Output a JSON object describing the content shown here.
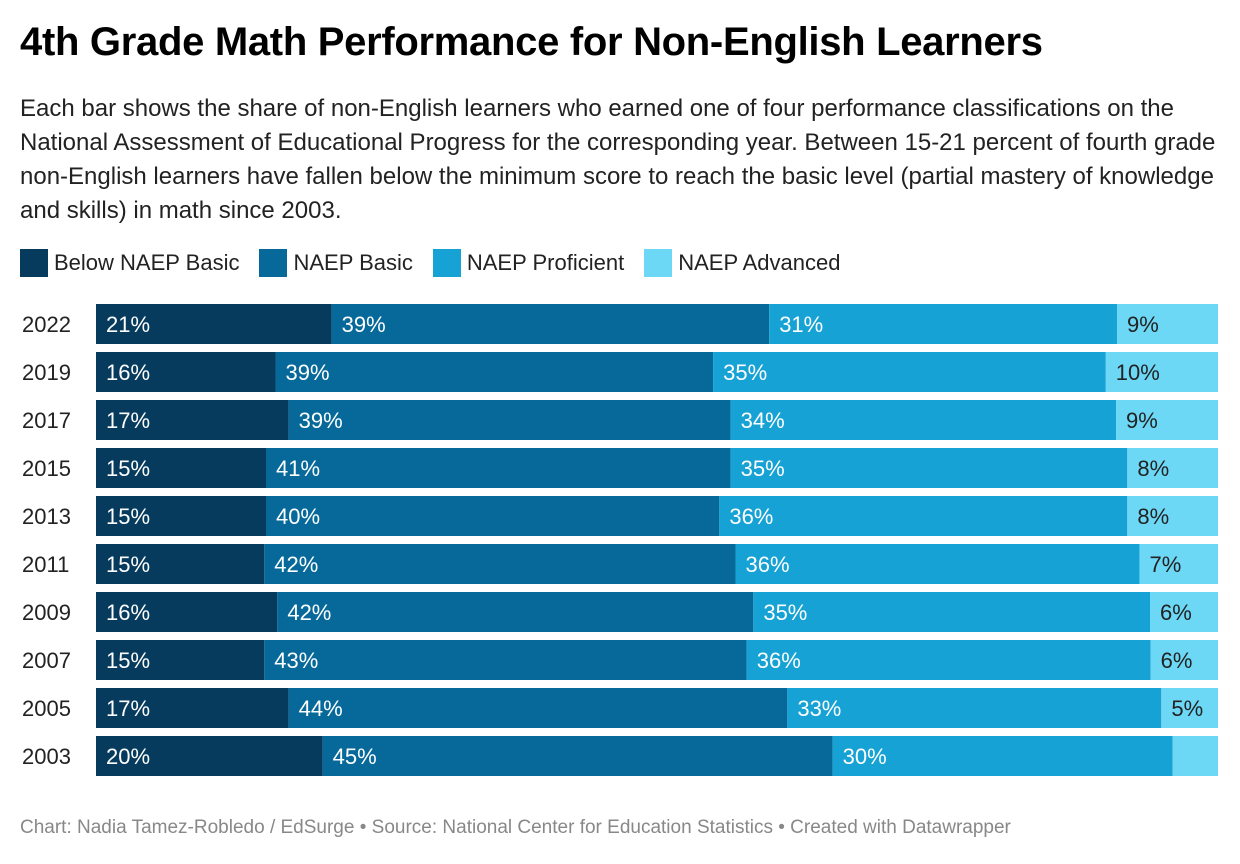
{
  "title": "4th Grade Math Performance for Non-English Learners",
  "subtitle": "Each bar shows the share of non-English learners who earned one of four performance classifications on the National Assessment of Educational Progress for the corresponding year. Between 15-21 percent of fourth grade non-English learners have fallen below the minimum score to reach the basic level (partial mastery of knowledge and skills) in math since 2003.",
  "footer": "Chart: Nadia Tamez-Robledo / EdSurge • Source: National Center for Education Statistics • Created with Datawrapper",
  "legend": [
    {
      "label": "Below NAEP Basic",
      "color": "#063b5e"
    },
    {
      "label": "NAEP Basic",
      "color": "#06699a"
    },
    {
      "label": "NAEP Proficient",
      "color": "#16a2d4"
    },
    {
      "label": "NAEP Advanced",
      "color": "#6cd8f6"
    }
  ],
  "chart_data": {
    "type": "bar",
    "orientation": "horizontal",
    "stacked": true,
    "categories": [
      "2022",
      "2019",
      "2017",
      "2015",
      "2013",
      "2011",
      "2009",
      "2007",
      "2005",
      "2003"
    ],
    "series": [
      {
        "name": "Below NAEP Basic",
        "color": "#063b5e",
        "values": [
          21,
          16,
          17,
          15,
          15,
          15,
          16,
          15,
          17,
          20
        ]
      },
      {
        "name": "NAEP Basic",
        "color": "#06699a",
        "values": [
          39,
          39,
          39,
          41,
          40,
          42,
          42,
          43,
          44,
          45
        ]
      },
      {
        "name": "NAEP Proficient",
        "color": "#16a2d4",
        "values": [
          31,
          35,
          34,
          35,
          36,
          36,
          35,
          36,
          33,
          30
        ]
      },
      {
        "name": "NAEP Advanced",
        "color": "#6cd8f6",
        "values": [
          9,
          10,
          9,
          8,
          8,
          7,
          6,
          6,
          5,
          4
        ]
      }
    ],
    "data_labels": [
      [
        "21%",
        "16%",
        "17%",
        "15%",
        "15%",
        "15%",
        "16%",
        "15%",
        "17%",
        "20%"
      ],
      [
        "39%",
        "39%",
        "39%",
        "41%",
        "40%",
        "42%",
        "42%",
        "43%",
        "44%",
        "45%"
      ],
      [
        "31%",
        "35%",
        "34%",
        "35%",
        "36%",
        "36%",
        "35%",
        "36%",
        "33%",
        "30%"
      ],
      [
        "9%",
        "10%",
        "9%",
        "8%",
        "8%",
        "7%",
        "6%",
        "6%",
        "5%",
        ""
      ]
    ],
    "xlim": [
      0,
      100
    ],
    "grid": false
  }
}
